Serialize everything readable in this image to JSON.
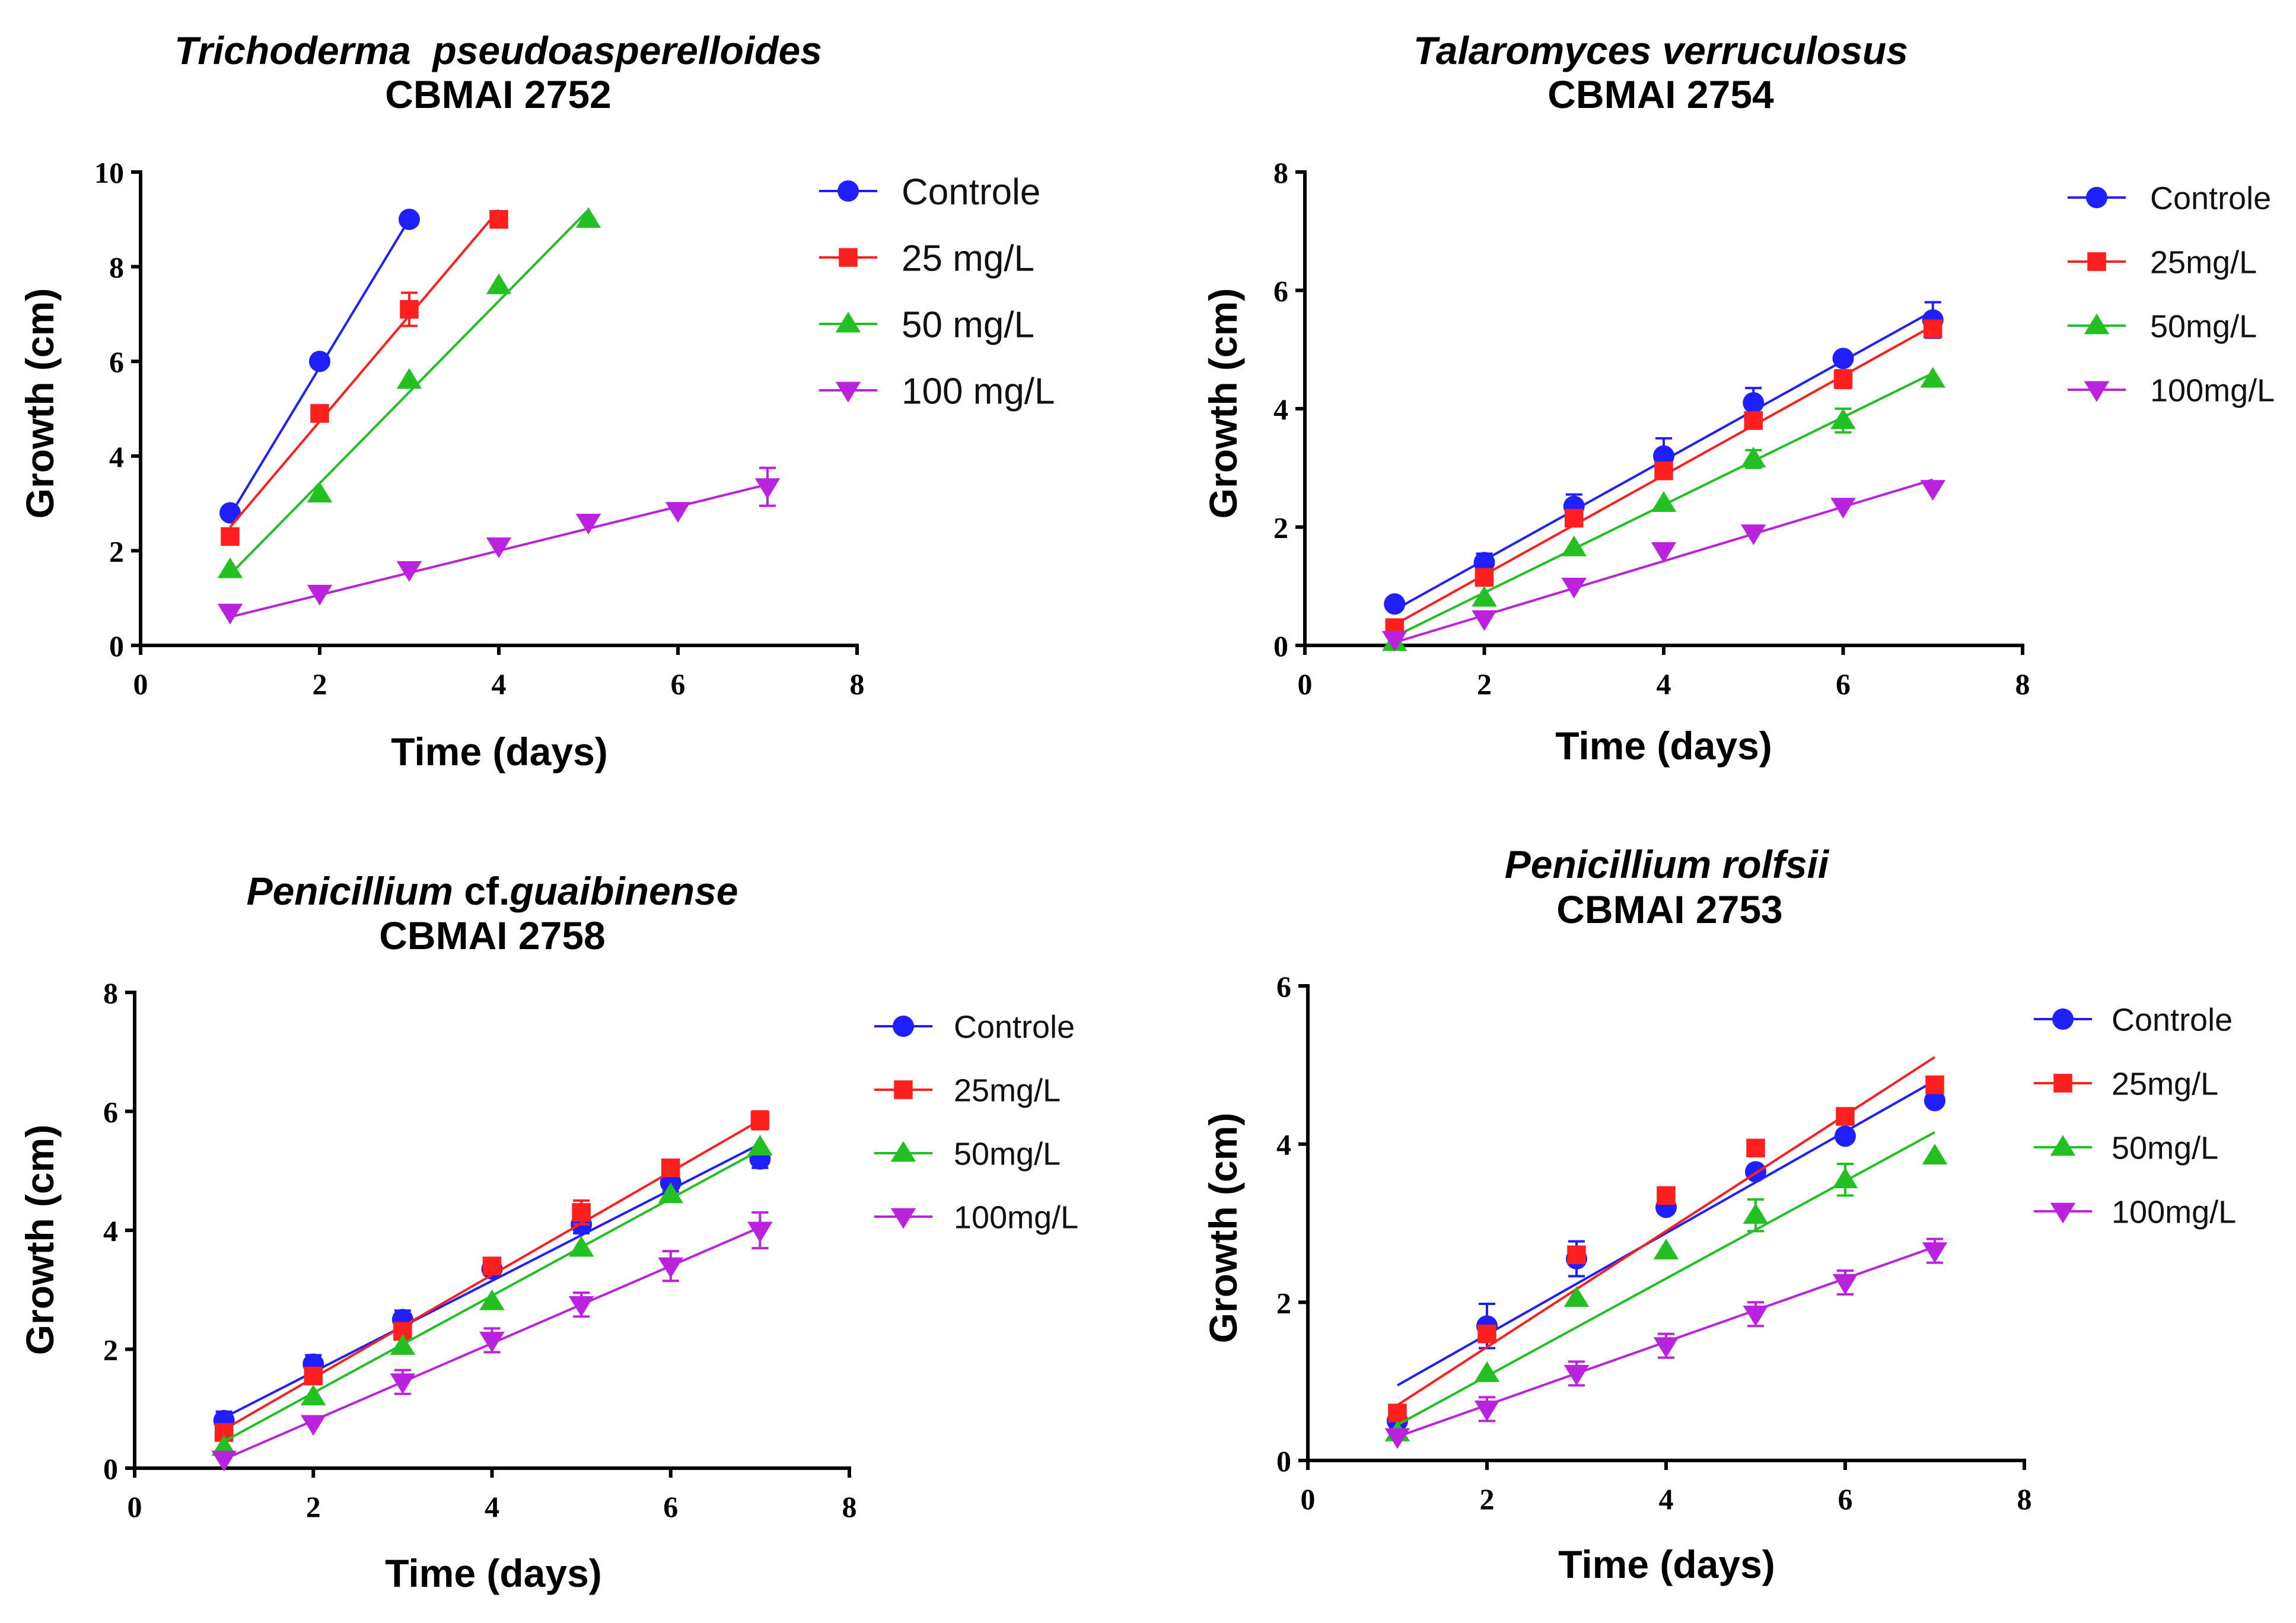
{
  "chart_data": [
    {
      "type": "scatter",
      "title_species": "Trichoderma  pseudoasperelloides",
      "title_strain": "CBMAI 2752",
      "xlabel": "Time (days)",
      "ylabel": "Growth (cm)",
      "xlim": [
        0,
        8
      ],
      "ylim": [
        0,
        10
      ],
      "xticks": [
        0,
        2,
        4,
        6,
        8
      ],
      "yticks": [
        0,
        2,
        4,
        6,
        8,
        10
      ],
      "grid": false,
      "legend_position": "right",
      "series": [
        {
          "name": "Controle",
          "marker": "circle",
          "color": "#1f1fff",
          "x": [
            1,
            2,
            3
          ],
          "values": [
            2.8,
            6.0,
            9.0
          ],
          "errors": [
            0,
            0,
            0
          ],
          "fit": [
            [
              1,
              2.75
            ],
            [
              3,
              9.0
            ]
          ]
        },
        {
          "name": "25 mg/L",
          "marker": "square",
          "color": "#ff1f1f",
          "x": [
            1,
            2,
            3,
            4
          ],
          "values": [
            2.3,
            4.9,
            7.1,
            9.0
          ],
          "errors": [
            0,
            0,
            0.35,
            0
          ],
          "fit": [
            [
              1,
              2.5
            ],
            [
              4,
              9.2
            ]
          ]
        },
        {
          "name": "50 mg/L",
          "marker": "triangle-up",
          "color": "#22c022",
          "x": [
            1,
            2,
            3,
            4,
            5
          ],
          "values": [
            1.6,
            3.2,
            5.6,
            7.6,
            9.0
          ],
          "errors": [
            0,
            0,
            0,
            0,
            0
          ],
          "fit": [
            [
              1,
              1.5
            ],
            [
              5,
              9.2
            ]
          ]
        },
        {
          "name": "100 mg/L",
          "marker": "triangle-down",
          "color": "#bb22dd",
          "x": [
            1,
            2,
            3,
            4,
            5,
            6,
            7
          ],
          "values": [
            0.7,
            1.1,
            1.6,
            2.1,
            2.6,
            2.85,
            3.35
          ],
          "errors": [
            0,
            0,
            0,
            0,
            0,
            0,
            0.4
          ],
          "fit": [
            [
              1,
              0.6
            ],
            [
              7,
              3.4
            ]
          ]
        }
      ]
    },
    {
      "type": "scatter",
      "title_species": "Talaromyces verruculosus",
      "title_strain": "CBMAI 2754",
      "xlabel": "Time (days)",
      "ylabel": "Growth (cm)",
      "xlim": [
        0,
        8
      ],
      "ylim": [
        0,
        8
      ],
      "xticks": [
        0,
        2,
        4,
        6,
        8
      ],
      "yticks": [
        0,
        2,
        4,
        6,
        8
      ],
      "grid": false,
      "legend_position": "right",
      "series": [
        {
          "name": "Controle",
          "marker": "circle",
          "color": "#1f1fff",
          "x": [
            1,
            2,
            3,
            4,
            5,
            6,
            7
          ],
          "values": [
            0.7,
            1.4,
            2.35,
            3.2,
            4.1,
            4.85,
            5.5
          ],
          "errors": [
            0,
            0.15,
            0.2,
            0.3,
            0.25,
            0,
            0.3
          ],
          "fit": [
            [
              1,
              0.6
            ],
            [
              7,
              5.65
            ]
          ]
        },
        {
          "name": "25mg/L",
          "marker": "square",
          "color": "#ff1f1f",
          "x": [
            1,
            2,
            3,
            4,
            5,
            6,
            7
          ],
          "values": [
            0.3,
            1.15,
            2.15,
            2.95,
            3.8,
            4.5,
            5.35
          ],
          "errors": [
            0,
            0,
            0,
            0,
            0,
            0.15,
            0
          ],
          "fit": [
            [
              1,
              0.35
            ],
            [
              7,
              5.4
            ]
          ]
        },
        {
          "name": "50mg/L",
          "marker": "triangle-up",
          "color": "#22c022",
          "x": [
            1,
            2,
            3,
            4,
            5,
            6,
            7
          ],
          "values": [
            0.05,
            0.8,
            1.65,
            2.4,
            3.15,
            3.8,
            4.5
          ],
          "errors": [
            0,
            0,
            0,
            0,
            0.15,
            0.2,
            0
          ],
          "fit": [
            [
              1,
              0.15
            ],
            [
              7,
              4.6
            ]
          ]
        },
        {
          "name": "100mg/L",
          "marker": "triangle-down",
          "color": "#bb22dd",
          "x": [
            1,
            2,
            3,
            4,
            5,
            6,
            7
          ],
          "values": [
            0.1,
            0.45,
            1.0,
            1.6,
            1.9,
            2.35,
            2.65
          ],
          "errors": [
            0,
            0,
            0,
            0,
            0,
            0,
            0
          ],
          "fit": [
            [
              1,
              0.05
            ],
            [
              7,
              2.8
            ]
          ]
        }
      ]
    },
    {
      "type": "scatter",
      "title_species": "Penicillium",
      "title_species_extra": " cf.",
      "title_species_end": "guaibinense",
      "title_strain": "CBMAI 2758",
      "xlabel": "Time (days)",
      "ylabel": "Growth (cm)",
      "xlim": [
        0,
        8
      ],
      "ylim": [
        0,
        8
      ],
      "xticks": [
        0,
        2,
        4,
        6,
        8
      ],
      "yticks": [
        0,
        2,
        4,
        6,
        8
      ],
      "grid": false,
      "legend_position": "right",
      "series": [
        {
          "name": "Controle",
          "marker": "circle",
          "color": "#1f1fff",
          "x": [
            1,
            2,
            3,
            4,
            5,
            6,
            7
          ],
          "values": [
            0.8,
            1.75,
            2.5,
            3.35,
            4.1,
            4.8,
            5.2
          ],
          "errors": [
            0.15,
            0.15,
            0.15,
            0.1,
            0.15,
            0.15,
            0.15
          ],
          "fit": [
            [
              1,
              0.85
            ],
            [
              7,
              5.45
            ]
          ]
        },
        {
          "name": "25mg/L",
          "marker": "square",
          "color": "#ff1f1f",
          "x": [
            1,
            2,
            3,
            4,
            5,
            6,
            7
          ],
          "values": [
            0.6,
            1.55,
            2.3,
            3.4,
            4.3,
            5.05,
            5.85
          ],
          "errors": [
            0,
            0,
            0,
            0,
            0.2,
            0,
            0.15
          ],
          "fit": [
            [
              1,
              0.65
            ],
            [
              7,
              5.85
            ]
          ]
        },
        {
          "name": "50mg/L",
          "marker": "triangle-up",
          "color": "#22c022",
          "x": [
            1,
            2,
            3,
            4,
            5,
            6,
            7
          ],
          "values": [
            0.35,
            1.2,
            2.05,
            2.8,
            3.7,
            4.6,
            5.4
          ],
          "errors": [
            0,
            0,
            0,
            0,
            0,
            0,
            0
          ],
          "fit": [
            [
              1,
              0.45
            ],
            [
              7,
              5.35
            ]
          ]
        },
        {
          "name": "100mg/L",
          "marker": "triangle-down",
          "color": "#bb22dd",
          "x": [
            1,
            2,
            3,
            4,
            5,
            6,
            7
          ],
          "values": [
            0.15,
            0.75,
            1.45,
            2.15,
            2.75,
            3.4,
            4.0
          ],
          "errors": [
            0,
            0,
            0.2,
            0.2,
            0.2,
            0.25,
            0.3
          ],
          "fit": [
            [
              1,
              0.15
            ],
            [
              7,
              4.05
            ]
          ]
        }
      ]
    },
    {
      "type": "scatter",
      "title_species": "Penicillium rolfsii",
      "title_strain": "CBMAI 2753",
      "xlabel": "Time (days)",
      "ylabel": "Growth (cm)",
      "xlim": [
        0,
        8
      ],
      "ylim": [
        0,
        6
      ],
      "xticks": [
        0,
        2,
        4,
        6,
        8
      ],
      "yticks": [
        0,
        2,
        4,
        6
      ],
      "grid": false,
      "legend_position": "right",
      "series": [
        {
          "name": "Controle",
          "marker": "circle",
          "color": "#1f1fff",
          "x": [
            1,
            2,
            3,
            4,
            5,
            6,
            7
          ],
          "values": [
            0.5,
            1.7,
            2.55,
            3.2,
            3.65,
            4.1,
            4.55
          ],
          "errors": [
            0,
            0.28,
            0.22,
            0,
            0,
            0,
            0
          ],
          "fit": [
            [
              1,
              0.95
            ],
            [
              7,
              4.8
            ]
          ]
        },
        {
          "name": "25mg/L",
          "marker": "square",
          "color": "#ff1f1f",
          "x": [
            1,
            2,
            3,
            4,
            5,
            6,
            7
          ],
          "values": [
            0.6,
            1.6,
            2.6,
            3.35,
            3.95,
            4.35,
            4.75
          ],
          "errors": [
            0,
            0,
            0,
            0,
            0,
            0,
            0
          ],
          "fit": [
            [
              1,
              0.7
            ],
            [
              7,
              5.1
            ]
          ]
        },
        {
          "name": "50mg/L",
          "marker": "triangle-up",
          "color": "#22c022",
          "x": [
            1,
            2,
            3,
            4,
            5,
            6,
            7
          ],
          "values": [
            0.35,
            1.1,
            2.05,
            2.65,
            3.1,
            3.55,
            3.85
          ],
          "errors": [
            0,
            0,
            0,
            0,
            0.2,
            0.2,
            0
          ],
          "fit": [
            [
              1,
              0.45
            ],
            [
              7,
              4.15
            ]
          ]
        },
        {
          "name": "100mg/L",
          "marker": "triangle-down",
          "color": "#bb22dd",
          "x": [
            1,
            2,
            3,
            4,
            5,
            6,
            7
          ],
          "values": [
            0.3,
            0.65,
            1.1,
            1.45,
            1.85,
            2.25,
            2.65
          ],
          "errors": [
            0,
            0.15,
            0.15,
            0.15,
            0.15,
            0.15,
            0.15
          ],
          "fit": [
            [
              1,
              0.3
            ],
            [
              7,
              2.7
            ]
          ]
        }
      ]
    }
  ]
}
